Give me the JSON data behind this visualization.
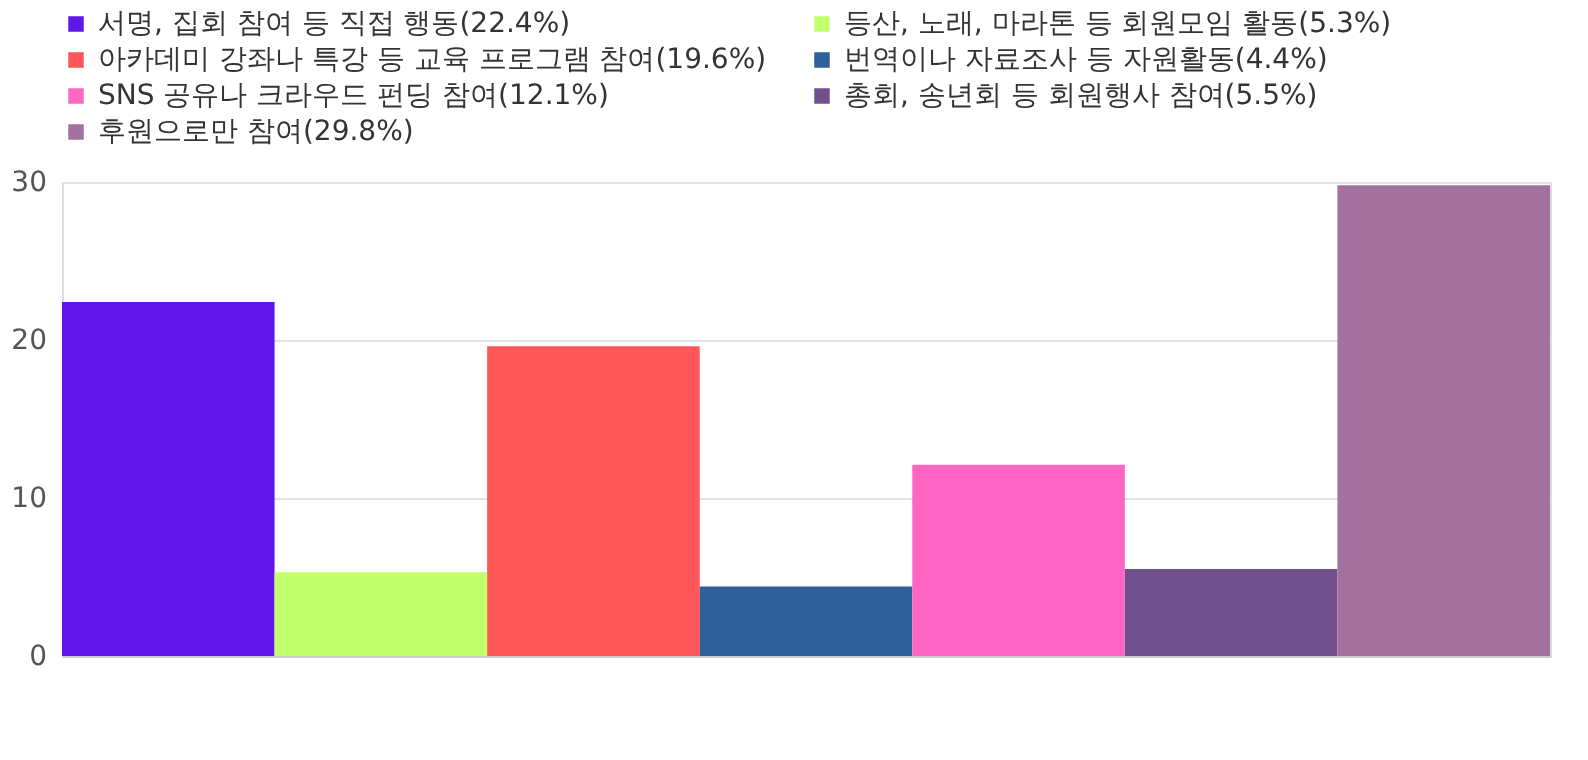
{
  "chart_data": {
    "type": "bar",
    "categories": [
      null,
      null,
      null,
      null,
      null,
      null,
      null
    ],
    "series": [
      {
        "name": "서명, 집회 참여 등 직접 행동(22.4%)",
        "color": "#5f17e9",
        "values": [
          22.4,
          null,
          null,
          null,
          null,
          null,
          null
        ]
      },
      {
        "name": "등산, 노래, 마라톤 등 회원모임 활동(5.3%)",
        "color": "#c2ff6c",
        "values": [
          null,
          5.3,
          null,
          null,
          null,
          null,
          null
        ]
      },
      {
        "name": "아카데미 강좌나 특강 등 교육 프로그램 참여(19.6%)",
        "color": "#ff5757",
        "values": [
          null,
          null,
          19.6,
          null,
          null,
          null,
          null
        ]
      },
      {
        "name": "번역이나 자료조사 등 자원활동(4.4%)",
        "color": "#2f5f98",
        "values": [
          null,
          null,
          null,
          4.4,
          null,
          null,
          null
        ]
      },
      {
        "name": "SNS 공유나 크라우드 펀딩 참여(12.1%)",
        "color": "#ff66c4",
        "values": [
          null,
          null,
          null,
          null,
          12.1,
          null,
          null
        ]
      },
      {
        "name": "총회, 송년회 등 회원행사 참여(5.5%)",
        "color": "#714f8c",
        "values": [
          null,
          null,
          null,
          null,
          null,
          5.5,
          null
        ]
      },
      {
        "name": "후원으로만 참여(29.8%)",
        "color": "#a3719d",
        "values": [
          null,
          null,
          null,
          null,
          null,
          null,
          29.8
        ]
      }
    ],
    "ylim": [
      0,
      30
    ],
    "yticks": [
      0,
      10,
      20,
      30
    ],
    "grid": "y",
    "legend": "top",
    "tick_labels": "y"
  }
}
